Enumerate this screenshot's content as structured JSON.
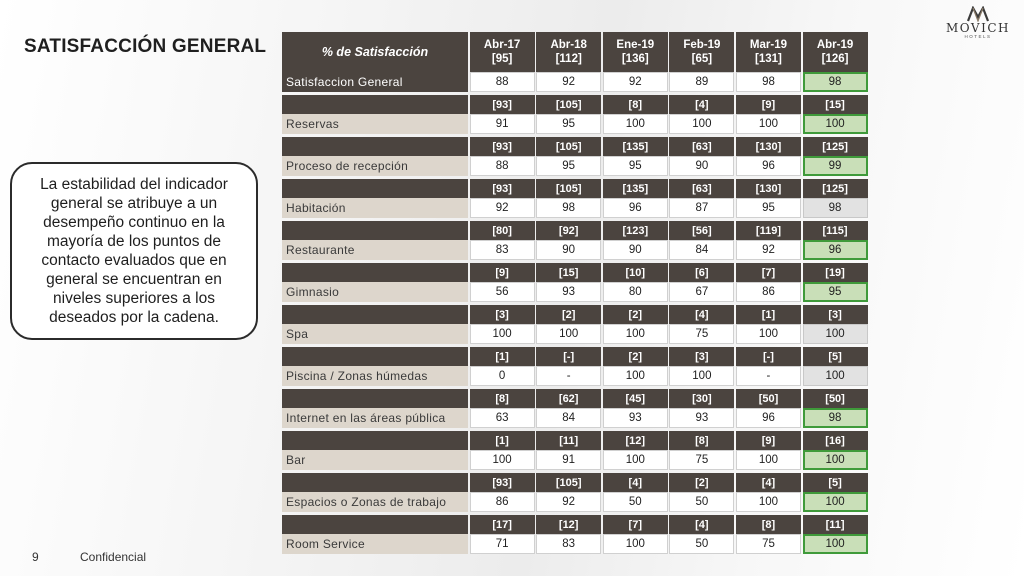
{
  "title": "SATISFACCIÓN GENERAL",
  "callout": "La estabilidad del indicador general se atribuye a un desempeño continuo en la mayoría de los puntos de contacto evaluados que en general se encuentran en niveles superiores a los deseados por la cadena.",
  "logo": {
    "name": "MOVICH",
    "sub": "HOTELS",
    "icon": "movich-m-logo-icon"
  },
  "footer": {
    "page": "9",
    "label": "Confidencial"
  },
  "table": {
    "header_label": "% de Satisfacción",
    "columns": [
      {
        "period": "Abr-17",
        "n": "[95]"
      },
      {
        "period": "Abr-18",
        "n": "[112]"
      },
      {
        "period": "Ene-19",
        "n": "[136]"
      },
      {
        "period": "Feb-19",
        "n": "[65]"
      },
      {
        "period": "Mar-19",
        "n": "[131]"
      },
      {
        "period": "Abr-19",
        "n": "[126]"
      }
    ],
    "sections": [
      {
        "label": "Satisfaccion General",
        "counts": null,
        "values": [
          "88",
          "92",
          "92",
          "89",
          "98",
          "98"
        ],
        "last_style": "green",
        "label_dark": true
      },
      {
        "label": "Reservas",
        "counts": [
          "[93]",
          "[105]",
          "[8]",
          "[4]",
          "[9]",
          "[15]"
        ],
        "values": [
          "91",
          "95",
          "100",
          "100",
          "100",
          "100"
        ],
        "last_style": "green"
      },
      {
        "label": "Proceso de recepción",
        "counts": [
          "[93]",
          "[105]",
          "[135]",
          "[63]",
          "[130]",
          "[125]"
        ],
        "values": [
          "88",
          "95",
          "95",
          "90",
          "96",
          "99"
        ],
        "last_style": "green"
      },
      {
        "label": "Habitación",
        "counts": [
          "[93]",
          "[105]",
          "[135]",
          "[63]",
          "[130]",
          "[125]"
        ],
        "values": [
          "92",
          "98",
          "96",
          "87",
          "95",
          "98"
        ],
        "last_style": "grey"
      },
      {
        "label": "Restaurante",
        "counts": [
          "[80]",
          "[92]",
          "[123]",
          "[56]",
          "[119]",
          "[115]"
        ],
        "values": [
          "83",
          "90",
          "90",
          "84",
          "92",
          "96"
        ],
        "last_style": "green"
      },
      {
        "label": "Gimnasio",
        "counts": [
          "[9]",
          "[15]",
          "[10]",
          "[6]",
          "[7]",
          "[19]"
        ],
        "values": [
          "56",
          "93",
          "80",
          "67",
          "86",
          "95"
        ],
        "last_style": "green"
      },
      {
        "label": "Spa",
        "counts": [
          "[3]",
          "[2]",
          "[2]",
          "[4]",
          "[1]",
          "[3]"
        ],
        "values": [
          "100",
          "100",
          "100",
          "75",
          "100",
          "100"
        ],
        "last_style": "grey"
      },
      {
        "label": "Piscina / Zonas húmedas",
        "counts": [
          "[1]",
          "[-]",
          "[2]",
          "[3]",
          "[-]",
          "[5]"
        ],
        "values": [
          "0",
          "-",
          "100",
          "100",
          "-",
          "100"
        ],
        "last_style": "grey"
      },
      {
        "label": "Internet en las áreas pública",
        "counts": [
          "[8]",
          "[62]",
          "[45]",
          "[30]",
          "[50]",
          "[50]"
        ],
        "values": [
          "63",
          "84",
          "93",
          "93",
          "96",
          "98"
        ],
        "last_style": "green"
      },
      {
        "label": "Bar",
        "counts": [
          "[1]",
          "[11]",
          "[12]",
          "[8]",
          "[9]",
          "[16]"
        ],
        "values": [
          "100",
          "91",
          "100",
          "75",
          "100",
          "100"
        ],
        "last_style": "green"
      },
      {
        "label": "Espacios o Zonas de trabajo",
        "counts": [
          "[93]",
          "[105]",
          "[4]",
          "[2]",
          "[4]",
          "[5]"
        ],
        "values": [
          "86",
          "92",
          "50",
          "50",
          "100",
          "100"
        ],
        "last_style": "green"
      },
      {
        "label": "Room Service",
        "counts": [
          "[17]",
          "[12]",
          "[7]",
          "[4]",
          "[8]",
          "[11]"
        ],
        "values": [
          "71",
          "83",
          "100",
          "50",
          "75",
          "100"
        ],
        "last_style": "green"
      }
    ]
  }
}
